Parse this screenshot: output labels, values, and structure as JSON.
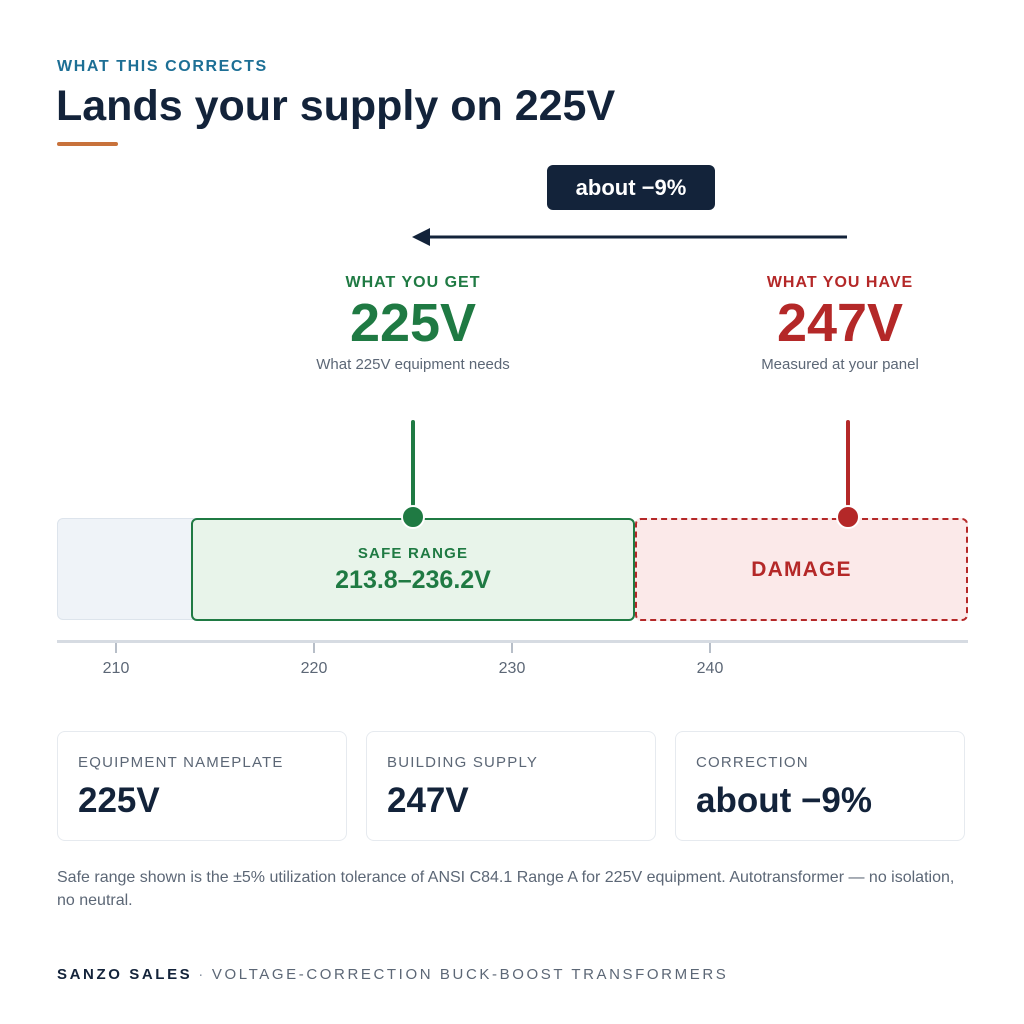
{
  "header": {
    "eyebrow": "WHAT THIS CORRECTS",
    "title": "Lands your supply on 225V"
  },
  "delta_label": "about −9%",
  "target": {
    "label": "WHAT YOU GET",
    "value": "225V",
    "caption": "What 225V equipment needs",
    "volts": 225
  },
  "current": {
    "label": "WHAT YOU HAVE",
    "value": "247V",
    "caption": "Measured at your panel",
    "volts": 247
  },
  "scale": {
    "safe_label": "SAFE RANGE",
    "safe_range": "213.8–236.2V",
    "damage_label": "DAMAGE",
    "ticks": [
      "210",
      "220",
      "230",
      "240"
    ]
  },
  "cards": [
    {
      "key": "EQUIPMENT NAMEPLATE",
      "value": "225V"
    },
    {
      "key": "BUILDING SUPPLY",
      "value": "247V"
    },
    {
      "key": "CORRECTION",
      "value": "about −9%"
    }
  ],
  "footnote": "Safe range shown is the ±5% utilization tolerance of ANSI C84.1 Range A for 225V equipment. Autotransformer — no isolation, no neutral.",
  "footer": {
    "brand": "SANZO SALES",
    "separator": "·",
    "tagline": "VOLTAGE-CORRECTION BUCK-BOOST TRANSFORMERS"
  },
  "colors": {
    "navy": "#13233a",
    "good": "#1f7a43",
    "bad": "#b42828",
    "accent": "#c8723b",
    "eyebrow": "#1d6f95"
  },
  "icons": {
    "arrow": "arrow-left-icon"
  }
}
